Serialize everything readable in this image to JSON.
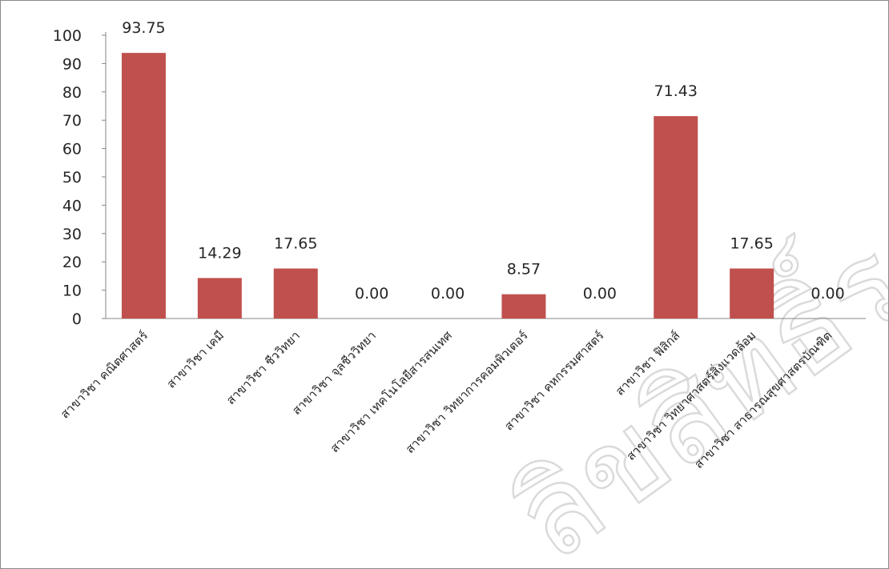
{
  "watermark": "ลิขสิทธิ์ราชภัฏจันทรเกษม",
  "chart_data": {
    "type": "bar",
    "categories": [
      "สาขาวิชา คณิตศาสตร์",
      "สาขาวิชา เคมี",
      "สาขาวิชา ชีววิทยา",
      "สาขาวิชา จุลชีววิทยา",
      "สาขาวิชา เทคโนโลยีสารสนเทศ",
      "สาขาวิชา วิทยาการคอมพิวเตอร์",
      "สาขาวิชา คหกรรมศาสตร์",
      "สาขาวิชา ฟิสิกส์",
      "สาขาวิชา วิทยาศาสตร์สิ่งแวดล้อม",
      "สาขาวิชา สาธารณสุขศาสตรบัณฑิต"
    ],
    "values": [
      93.75,
      14.29,
      17.65,
      0.0,
      0.0,
      8.57,
      0.0,
      71.43,
      17.65,
      0.0
    ],
    "data_labels": [
      "93.75",
      "14.29",
      "17.65",
      "0.00",
      "0.00",
      "8.57",
      "0.00",
      "71.43",
      "17.65",
      "0.00"
    ],
    "y_ticks": [
      "0",
      "10",
      "20",
      "30",
      "40",
      "50",
      "60",
      "70",
      "80",
      "90",
      "100"
    ],
    "ylim": [
      0,
      100
    ],
    "bar_color": "#c0504d",
    "axis_color": "#868686",
    "title": "",
    "xlabel": "",
    "ylabel": "",
    "grid": false,
    "legend": "none"
  }
}
